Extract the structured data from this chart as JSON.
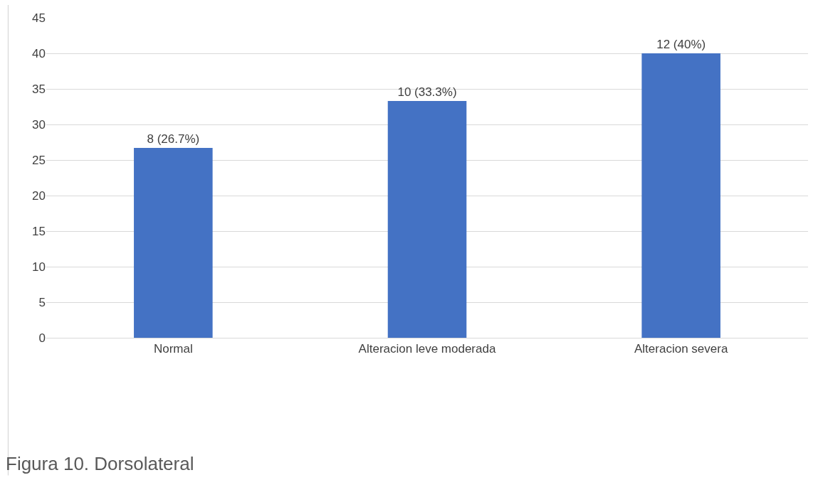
{
  "chart_data": {
    "type": "bar",
    "categories": [
      "Normal",
      "Alteracion leve moderada",
      "Alteracion severa"
    ],
    "values": [
      26.7,
      33.3,
      40
    ],
    "color": "#4472c4",
    "value_labels": [
      "8 (26.7%)",
      "10 (33.3%)",
      "12 (40%)"
    ],
    "ylim": [
      0,
      45
    ],
    "yticks": [
      0,
      5,
      10,
      15,
      20,
      25,
      30,
      35,
      40,
      45
    ],
    "grid": "y",
    "annotations": [
      "Figura 10. Dorsolateral"
    ]
  }
}
